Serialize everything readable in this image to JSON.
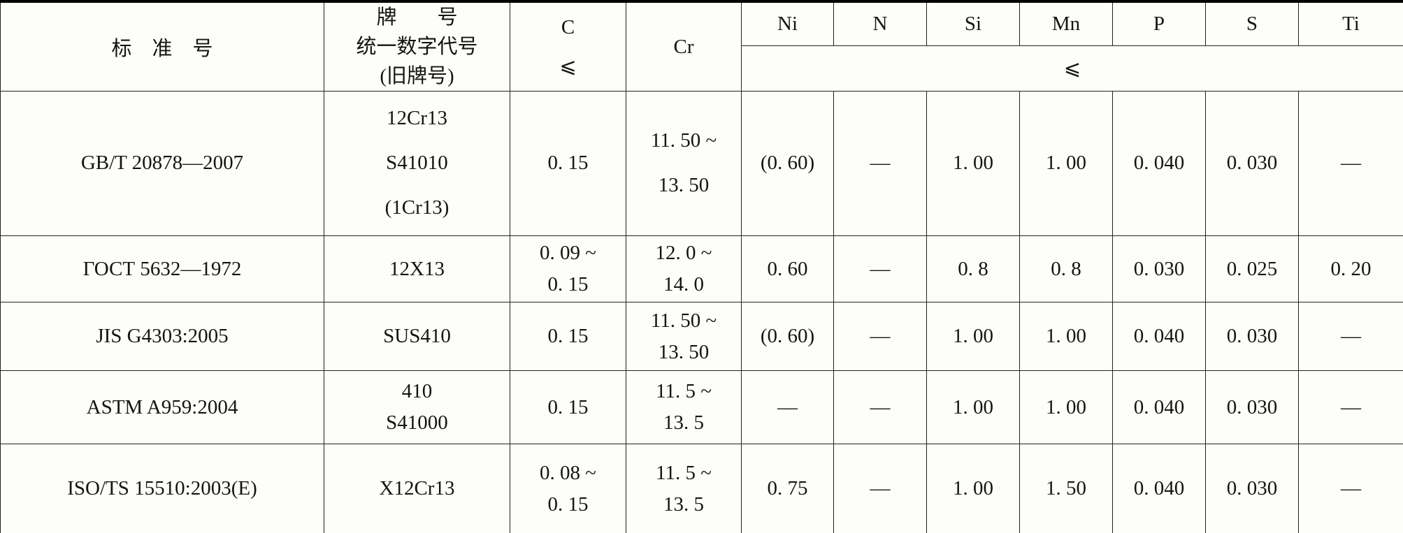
{
  "table": {
    "header": {
      "standard_label": "标　准　号",
      "grade_lines": [
        "牌　　号",
        "统一数字代号",
        "(旧牌号)"
      ],
      "c_label": "C",
      "leq_symbol": "⩽",
      "cr_label": "Cr",
      "elements": [
        "Ni",
        "N",
        "Si",
        "Mn",
        "P",
        "S",
        "Ti"
      ]
    },
    "rows": [
      {
        "standard": [
          "GB/T 20878—2007"
        ],
        "grade": [
          "12Cr13",
          "S41010",
          "(1Cr13)"
        ],
        "c": [
          "0. 15"
        ],
        "cr": [
          "11. 50 ~",
          "13. 50"
        ],
        "ni": [
          "(0. 60)"
        ],
        "n": [
          "—"
        ],
        "si": [
          "1. 00"
        ],
        "mn": [
          "1. 00"
        ],
        "p": [
          "0. 040"
        ],
        "s": [
          "0. 030"
        ],
        "ti": [
          "—"
        ]
      },
      {
        "standard": [
          "ГОСТ 5632—1972"
        ],
        "grade": [
          "12X13"
        ],
        "c": [
          "0. 09 ~",
          "0. 15"
        ],
        "cr": [
          "12. 0 ~",
          "14. 0"
        ],
        "ni": [
          "0. 60"
        ],
        "n": [
          "—"
        ],
        "si": [
          "0. 8"
        ],
        "mn": [
          "0. 8"
        ],
        "p": [
          "0. 030"
        ],
        "s": [
          "0. 025"
        ],
        "ti": [
          "0. 20"
        ]
      },
      {
        "standard": [
          "JIS G4303:2005"
        ],
        "grade": [
          "SUS410"
        ],
        "c": [
          "0. 15"
        ],
        "cr": [
          "11. 50 ~",
          "13. 50"
        ],
        "ni": [
          "(0. 60)"
        ],
        "n": [
          "—"
        ],
        "si": [
          "1. 00"
        ],
        "mn": [
          "1. 00"
        ],
        "p": [
          "0. 040"
        ],
        "s": [
          "0. 030"
        ],
        "ti": [
          "—"
        ]
      },
      {
        "standard": [
          "ASTM A959:2004"
        ],
        "grade": [
          "410",
          "S41000"
        ],
        "c": [
          "0. 15"
        ],
        "cr": [
          "11. 5 ~",
          "13. 5"
        ],
        "ni": [
          "—"
        ],
        "n": [
          "—"
        ],
        "si": [
          "1. 00"
        ],
        "mn": [
          "1. 00"
        ],
        "p": [
          "0. 040"
        ],
        "s": [
          "0. 030"
        ],
        "ti": [
          "—"
        ]
      },
      {
        "standard": [
          "ISO/TS 15510:2003(E)"
        ],
        "grade": [
          "X12Cr13"
        ],
        "c": [
          "0. 08 ~",
          "0. 15"
        ],
        "cr": [
          "11. 5 ~",
          "13. 5"
        ],
        "ni": [
          "0. 75"
        ],
        "n": [
          "—"
        ],
        "si": [
          "1. 00"
        ],
        "mn": [
          "1. 50"
        ],
        "p": [
          "0. 040"
        ],
        "s": [
          "0. 030"
        ],
        "ti": [
          "—"
        ]
      }
    ]
  }
}
